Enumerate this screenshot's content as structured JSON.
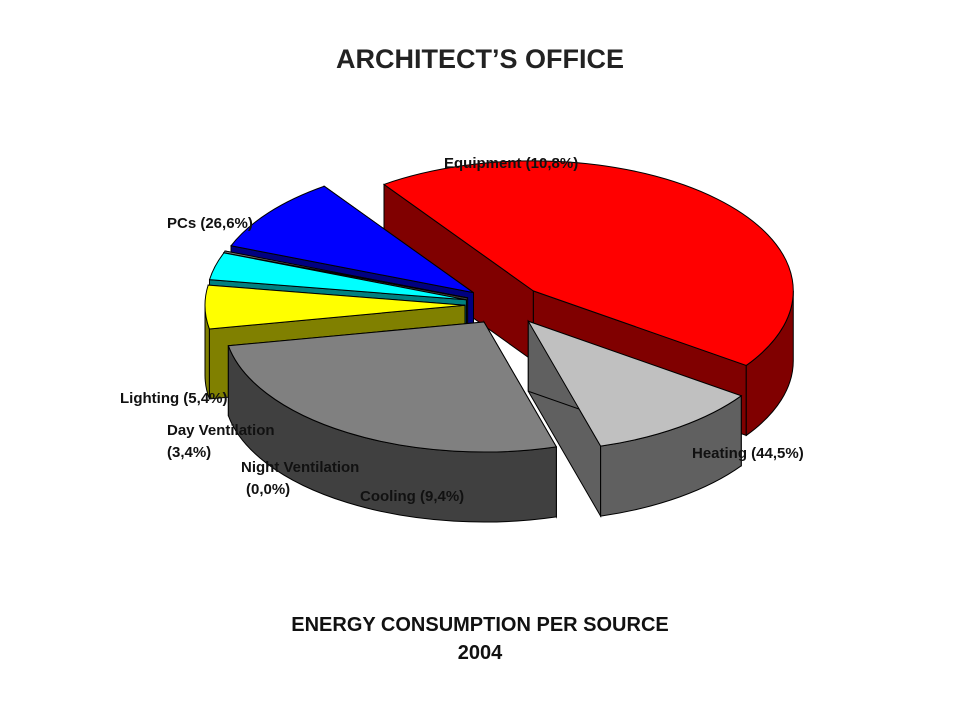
{
  "title": "ARCHITECT’S OFFICE",
  "caption": {
    "line1": "ENERGY CONSUMPTION PER SOURCE",
    "line2": "2004"
  },
  "chart_data": {
    "type": "pie",
    "title": "ARCHITECT’S OFFICE",
    "three_d": true,
    "exploded": true,
    "slices": [
      {
        "label": "Heating",
        "value": 44.5,
        "display_value": "44,5%",
        "color": "#ff0000",
        "side_color": "#800000",
        "label_lines": [
          "Heating (44,5%)"
        ]
      },
      {
        "label": "Cooling",
        "value": 9.4,
        "display_value": "9,4%",
        "color": "#0000ff",
        "side_color": "#000080",
        "label_lines": [
          "Cooling (9,4%)"
        ]
      },
      {
        "label": "Night Ventilation",
        "value": 0.0,
        "display_value": "0,0%",
        "color": "#808080",
        "side_color": "#404040",
        "label_lines": [
          "Night Ventilation",
          "(0,0%)"
        ]
      },
      {
        "label": "Day Ventilation",
        "value": 3.4,
        "display_value": "3,4%",
        "color": "#00ffff",
        "side_color": "#008080",
        "label_lines": [
          "Day Ventilation",
          "(3,4%)"
        ]
      },
      {
        "label": "Lighting",
        "value": 5.4,
        "display_value": "5,4%",
        "color": "#ffff00",
        "side_color": "#808000",
        "label_lines": [
          "Lighting (5,4%)"
        ]
      },
      {
        "label": "PCs",
        "value": 26.6,
        "display_value": "26,6%",
        "color": "#808080",
        "side_color": "#404040",
        "label_lines": [
          "PCs (26,6%)"
        ]
      },
      {
        "label": "Equipment",
        "value": 10.8,
        "display_value": "10,8%",
        "color": "#c0c0c0",
        "side_color": "#606060",
        "label_lines": [
          "Equipment (10,8%)"
        ]
      }
    ]
  }
}
